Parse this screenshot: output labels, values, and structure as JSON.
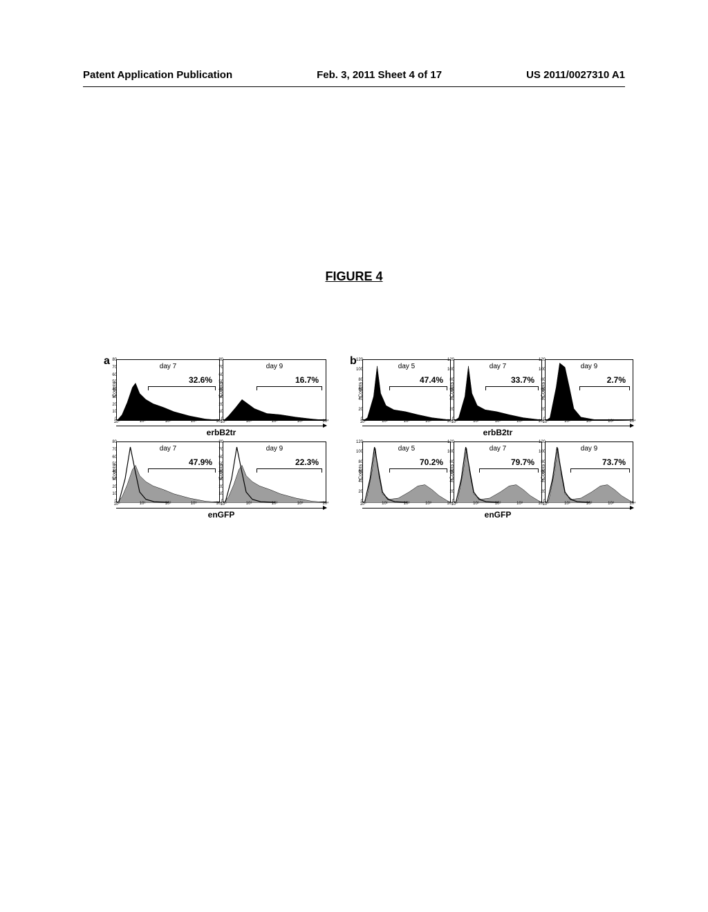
{
  "header": {
    "left": "Patent Application Publication",
    "center": "Feb. 3, 2011  Sheet 4 of 17",
    "right": "US 2011/0027310 A1"
  },
  "figure_title": "FIGURE 4",
  "panels": {
    "a": {
      "letter": "a",
      "histogram_w": 150,
      "histogram_h": 88,
      "rows": [
        {
          "axis_label": "erbB2tr",
          "fill_color": "#000000",
          "y_max": 80,
          "y_ticks": [
            0,
            10,
            20,
            30,
            40,
            50,
            60,
            70,
            80
          ],
          "hists": [
            {
              "day": "day 7",
              "pct": "32.6%",
              "gate_start": 0.3,
              "gate_end": 0.95,
              "shape": "broad"
            },
            {
              "day": "day 9",
              "pct": "16.7%",
              "gate_start": 0.32,
              "gate_end": 0.95,
              "shape": "broad_low"
            }
          ]
        },
        {
          "axis_label": "enGFP",
          "fill_color": "#9e9e9e",
          "y_max": 80,
          "y_ticks": [
            0,
            10,
            20,
            30,
            40,
            50,
            60,
            70,
            80
          ],
          "hists": [
            {
              "day": "day 7",
              "pct": "47.9%",
              "gate_start": 0.3,
              "gate_end": 0.95,
              "shape": "broad"
            },
            {
              "day": "day 9",
              "pct": "22.3%",
              "gate_start": 0.32,
              "gate_end": 0.95,
              "shape": "broad"
            }
          ]
        }
      ]
    },
    "b": {
      "letter": "b",
      "histogram_w": 128,
      "histogram_h": 88,
      "rows": [
        {
          "axis_label": "erbB2tr",
          "fill_color": "#000000",
          "y_max": 120,
          "y_ticks": [
            0,
            20,
            40,
            60,
            80,
            100,
            120
          ],
          "hists": [
            {
              "day": "day 5",
              "pct": "47.4%",
              "gate_start": 0.3,
              "gate_end": 0.95,
              "shape": "sharp_broad"
            },
            {
              "day": "day 7",
              "pct": "33.7%",
              "gate_start": 0.35,
              "gate_end": 0.95,
              "shape": "sharp_broad"
            },
            {
              "day": "day 9",
              "pct": "2.7%",
              "gate_start": 0.38,
              "gate_end": 0.95,
              "shape": "sharp_only"
            }
          ]
        },
        {
          "axis_label": "enGFP",
          "fill_color": "#9e9e9e",
          "y_max": 120,
          "y_ticks": [
            0,
            20,
            40,
            60,
            80,
            100,
            120
          ],
          "hists": [
            {
              "day": "day 5",
              "pct": "70.2%",
              "gate_start": 0.3,
              "gate_end": 0.95,
              "shape": "bimodal"
            },
            {
              "day": "day 7",
              "pct": "79.7%",
              "gate_start": 0.28,
              "gate_end": 0.95,
              "shape": "bimodal"
            },
            {
              "day": "day 9",
              "pct": "73.7%",
              "gate_start": 0.28,
              "gate_end": 0.95,
              "shape": "bimodal"
            }
          ]
        }
      ]
    }
  },
  "x_ticks": [
    "10⁰",
    "10¹",
    "10²",
    "10³",
    "10⁴"
  ],
  "y_axis_label": "Counts",
  "colors": {
    "text": "#000000",
    "background": "#ffffff",
    "border": "#000000",
    "outline_curve": "#000000"
  }
}
